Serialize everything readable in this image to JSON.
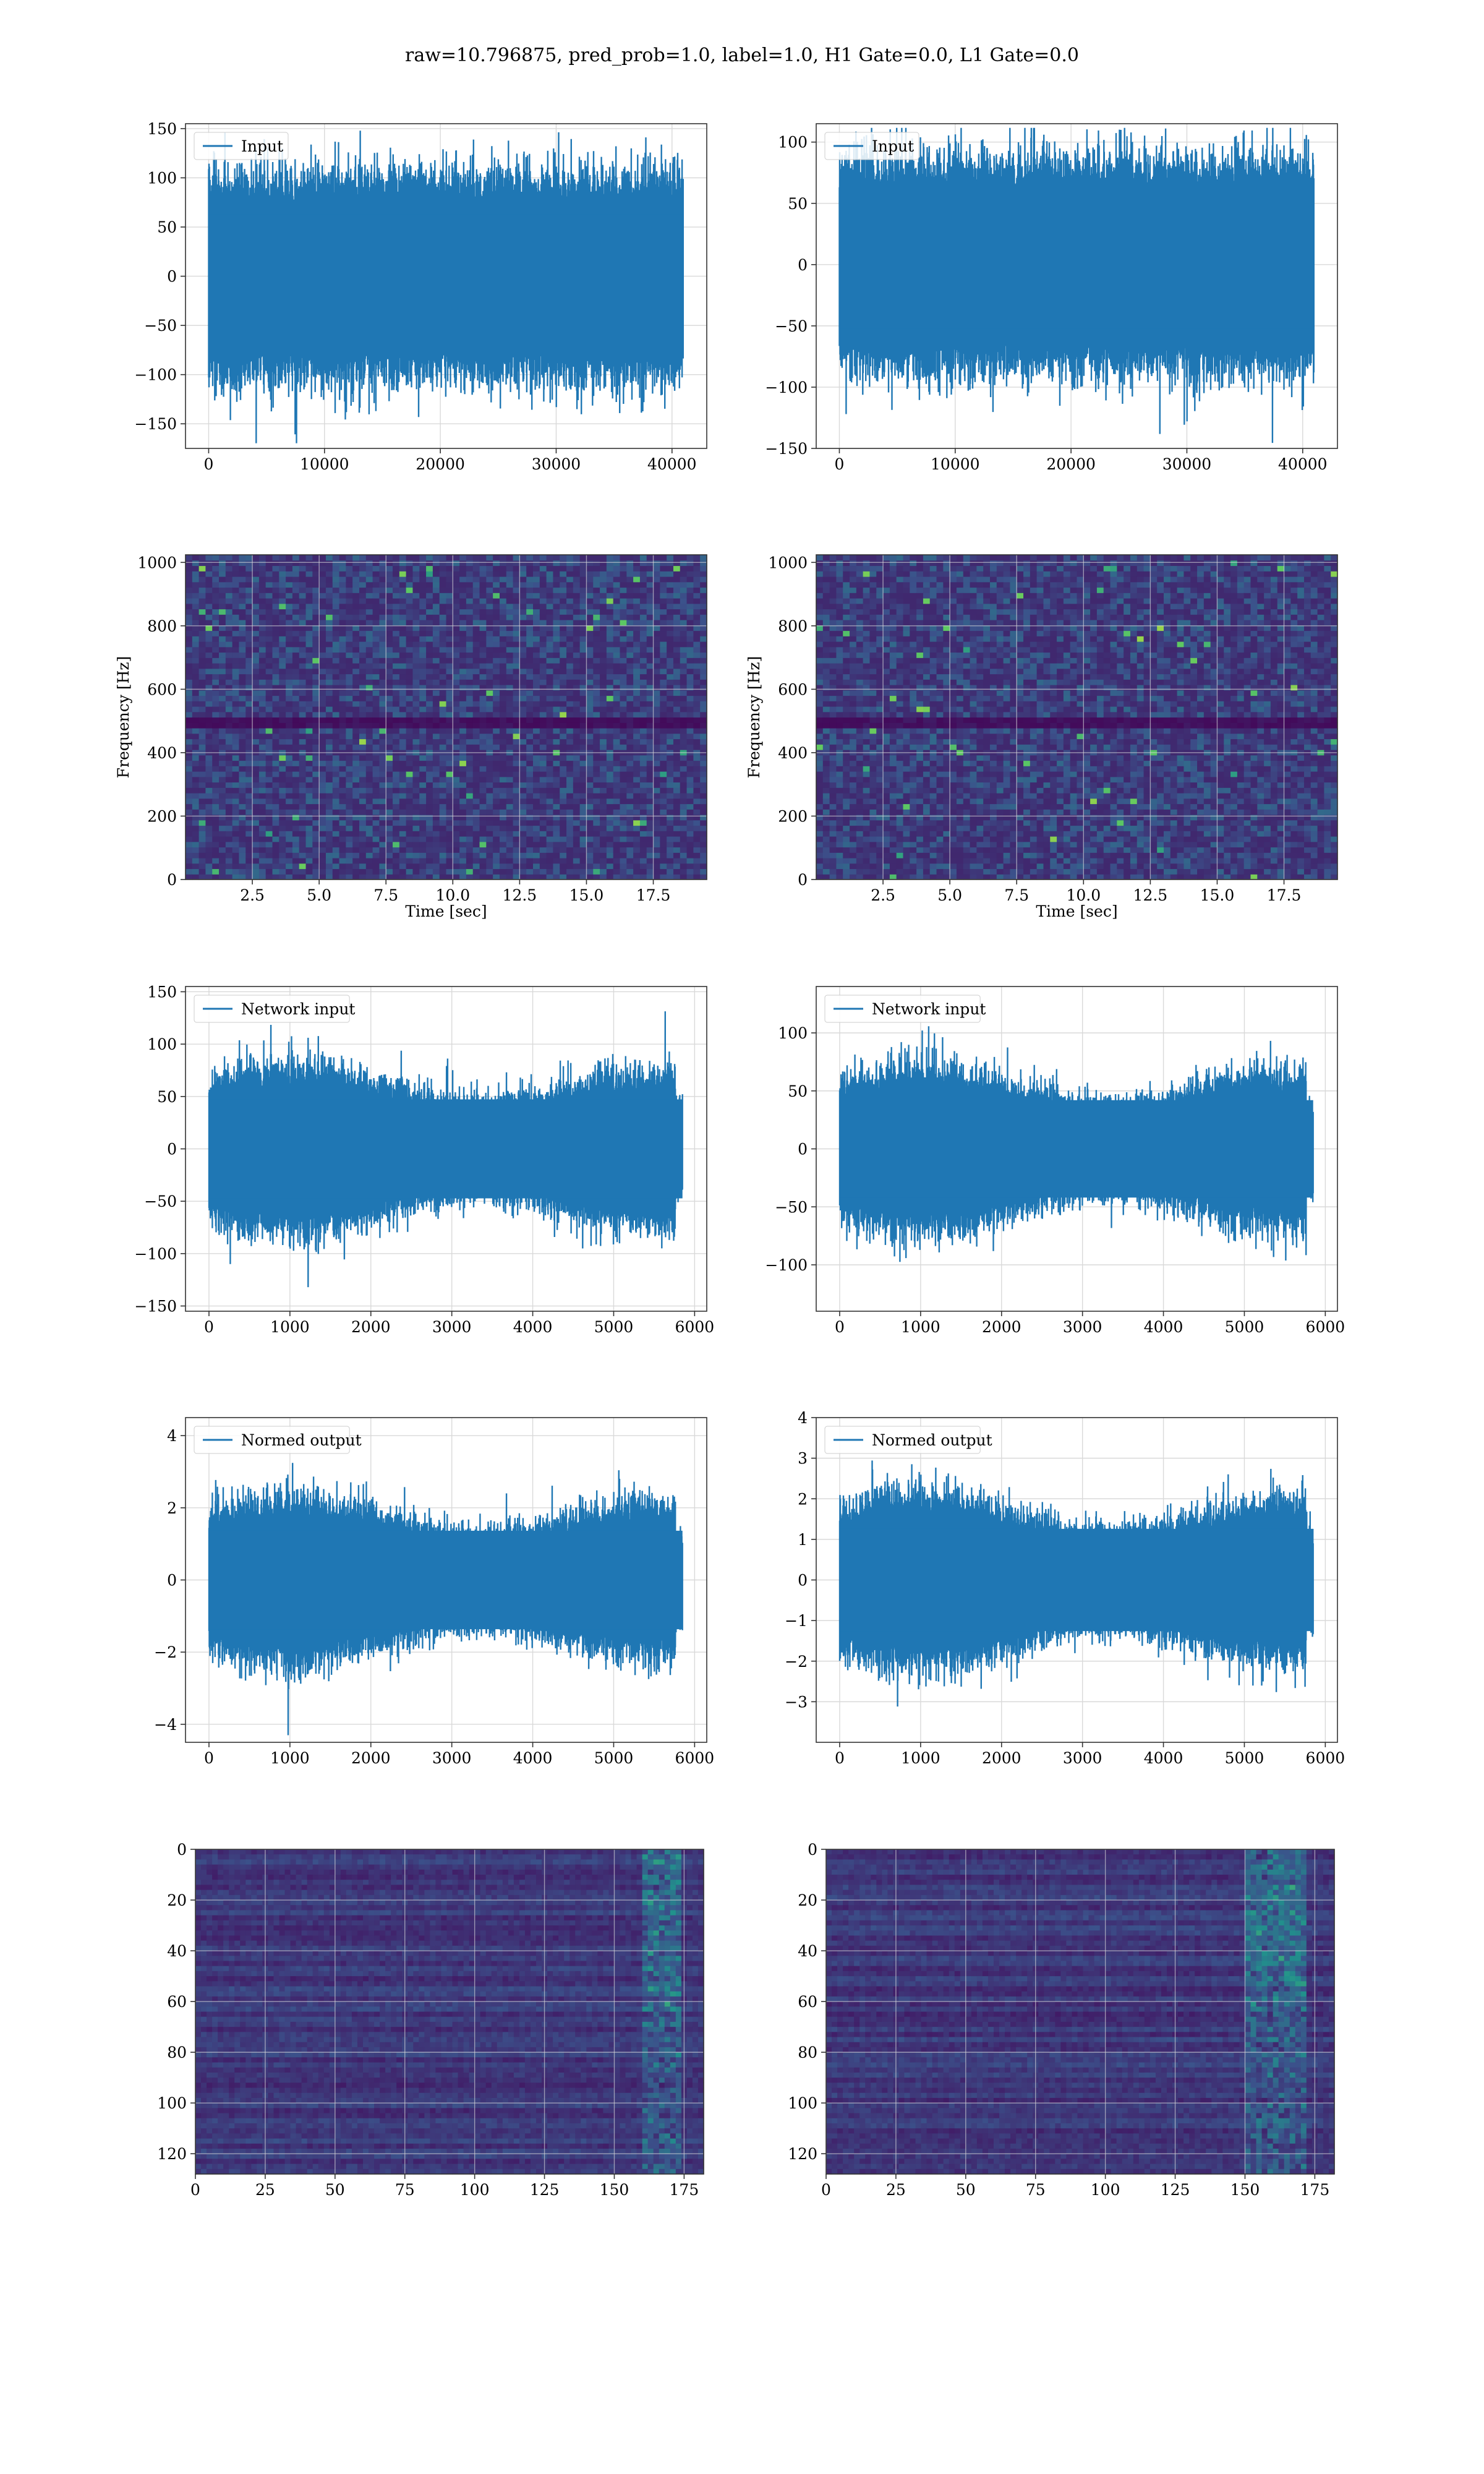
{
  "figure": {
    "title": "raw=10.796875, pred_prob=1.0, label=1.0, H1 Gate=0.0, L1 Gate=0.0"
  },
  "colors": {
    "line": "#1f77b4",
    "grid": "#b0b0b0",
    "viridis_low": "#440154",
    "viridis_high": "#fde725"
  },
  "chart_data": [
    {
      "id": "h1-input",
      "type": "line",
      "series": [
        {
          "name": "Input",
          "amplitude": 60,
          "n_points": 40960
        }
      ],
      "x_range": [
        0,
        40960
      ],
      "xlim": [
        -2000,
        43000
      ],
      "ylim": [
        -175,
        155
      ],
      "xticks": [
        0,
        10000,
        20000,
        30000,
        40000
      ],
      "yticks": [
        -150,
        -100,
        -50,
        0,
        50,
        100,
        150
      ],
      "legend": "upper-left",
      "grid": true,
      "xlabel": "",
      "ylabel": ""
    },
    {
      "id": "l1-input",
      "type": "line",
      "series": [
        {
          "name": "Input",
          "amplitude": 50,
          "n_points": 40960
        }
      ],
      "x_range": [
        0,
        40960
      ],
      "xlim": [
        -2000,
        43000
      ],
      "ylim": [
        -150,
        115
      ],
      "xticks": [
        0,
        10000,
        20000,
        30000,
        40000
      ],
      "yticks": [
        -150,
        -100,
        -50,
        0,
        50,
        100
      ],
      "legend": "upper-left",
      "grid": true,
      "xlabel": "",
      "ylabel": ""
    },
    {
      "id": "h1-spectrogram",
      "type": "heatmap",
      "xlim": [
        0,
        19.5
      ],
      "ylim": [
        0,
        1024
      ],
      "xticks": [
        "2.5",
        "5.0",
        "7.5",
        "10.0",
        "12.5",
        "15.0",
        "17.5"
      ],
      "xtick_values": [
        2.5,
        5.0,
        7.5,
        10.0,
        12.5,
        15.0,
        17.5
      ],
      "yticks": [
        0,
        200,
        400,
        600,
        800,
        1000
      ],
      "xlabel": "Time [sec]",
      "ylabel": "Frequency [Hz]",
      "grid": true,
      "colormap": "viridis",
      "dark_band_hz": 500
    },
    {
      "id": "l1-spectrogram",
      "type": "heatmap",
      "xlim": [
        0,
        19.5
      ],
      "ylim": [
        0,
        1024
      ],
      "xticks": [
        "2.5",
        "5.0",
        "7.5",
        "10.0",
        "12.5",
        "15.0",
        "17.5"
      ],
      "xtick_values": [
        2.5,
        5.0,
        7.5,
        10.0,
        12.5,
        15.0,
        17.5
      ],
      "yticks": [
        0,
        200,
        400,
        600,
        800,
        1000
      ],
      "xlabel": "Time [sec]",
      "ylabel": "Frequency [Hz]",
      "grid": true,
      "colormap": "viridis",
      "dark_band_hz": 500
    },
    {
      "id": "h1-network-input",
      "type": "line",
      "series": [
        {
          "name": "Network input",
          "amplitude": 45,
          "n_points": 5850
        }
      ],
      "x_range": [
        0,
        5850
      ],
      "xlim": [
        -290,
        6150
      ],
      "ylim": [
        -155,
        155
      ],
      "xticks": [
        0,
        1000,
        2000,
        3000,
        4000,
        5000,
        6000
      ],
      "yticks": [
        -150,
        -100,
        -50,
        0,
        50,
        100,
        150
      ],
      "legend": "upper-left",
      "grid": true,
      "xlabel": "",
      "ylabel": ""
    },
    {
      "id": "l1-network-input",
      "type": "line",
      "series": [
        {
          "name": "Network input",
          "amplitude": 40,
          "n_points": 5850
        }
      ],
      "x_range": [
        0,
        5850
      ],
      "xlim": [
        -290,
        6150
      ],
      "ylim": [
        -140,
        140
      ],
      "xticks": [
        0,
        1000,
        2000,
        3000,
        4000,
        5000,
        6000
      ],
      "yticks": [
        -100,
        -50,
        0,
        50,
        100
      ],
      "legend": "upper-left",
      "grid": true,
      "xlabel": "",
      "ylabel": ""
    },
    {
      "id": "h1-normed-output",
      "type": "line",
      "series": [
        {
          "name": "Normed output",
          "amplitude": 1.3,
          "n_points": 5850
        }
      ],
      "x_range": [
        0,
        5850
      ],
      "xlim": [
        -290,
        6150
      ],
      "ylim": [
        -4.5,
        4.5
      ],
      "xticks": [
        0,
        1000,
        2000,
        3000,
        4000,
        5000,
        6000
      ],
      "yticks": [
        -4,
        -2,
        0,
        2,
        4
      ],
      "legend": "upper-left",
      "grid": true,
      "xlabel": "",
      "ylabel": ""
    },
    {
      "id": "l1-normed-output",
      "type": "line",
      "series": [
        {
          "name": "Normed output",
          "amplitude": 1.2,
          "n_points": 5850
        }
      ],
      "x_range": [
        0,
        5850
      ],
      "xlim": [
        -290,
        6150
      ],
      "ylim": [
        -4.0,
        4.0
      ],
      "xticks": [
        0,
        1000,
        2000,
        3000,
        4000,
        5000,
        6000
      ],
      "yticks": [
        -3,
        -2,
        -1,
        0,
        1,
        2,
        3,
        4
      ],
      "legend": "upper-left",
      "grid": true,
      "xlabel": "",
      "ylabel": ""
    },
    {
      "id": "h1-feature-map",
      "type": "heatmap",
      "xlim": [
        0,
        182
      ],
      "ylim": [
        128,
        0
      ],
      "xticks": [
        0,
        25,
        50,
        75,
        100,
        125,
        150,
        175
      ],
      "yticks": [
        0,
        20,
        40,
        60,
        80,
        100,
        120
      ],
      "xlabel": "",
      "ylabel": "",
      "grid": true,
      "colormap": "viridis",
      "hot_columns": [
        160,
        175
      ]
    },
    {
      "id": "l1-feature-map",
      "type": "heatmap",
      "xlim": [
        0,
        182
      ],
      "ylim": [
        128,
        0
      ],
      "xticks": [
        0,
        25,
        50,
        75,
        100,
        125,
        150,
        175
      ],
      "yticks": [
        0,
        20,
        40,
        60,
        80,
        100,
        120
      ],
      "xlabel": "",
      "ylabel": "",
      "grid": true,
      "colormap": "viridis",
      "hot_columns": [
        150,
        172
      ]
    }
  ]
}
